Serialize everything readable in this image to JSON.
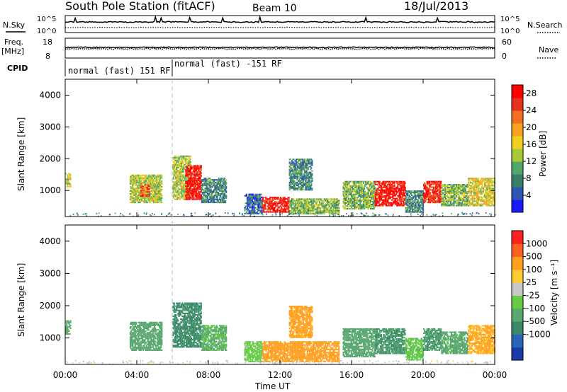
{
  "header": {
    "title": "South Pole Station (fitACF)",
    "beam": "Beam 10",
    "date": "18/Jul/2013"
  },
  "status_panels": {
    "nsky_label": "N.Sky",
    "nsearch_label": "N.Search",
    "noise_ticks_left": [
      "10^5",
      "10^0"
    ],
    "noise_ticks_right": [
      "10^5",
      "10^0"
    ],
    "freq_label": "Freq.",
    "freq_unit": "[MHz]",
    "freq_ticks": [
      "18",
      "8"
    ],
    "nave_label": "Nave",
    "nave_ticks": [
      "60",
      "0"
    ],
    "cpid_label": "CPID",
    "cpid_segments": [
      {
        "label": "normal (fast) 151 RF",
        "start_hour": 0,
        "end_hour": 6
      },
      {
        "label": "normal (fast) -151 RF",
        "start_hour": 6,
        "end_hour": 24
      }
    ]
  },
  "colors": {
    "power_scale": [
      "#1a1aff",
      "#2e58b0",
      "#3a7e6a",
      "#4fa86a",
      "#a8c83a",
      "#f0d020",
      "#f8a020",
      "#f07020",
      "#e83020",
      "#ff0000"
    ],
    "velocity_scale": [
      "#1a3aa8",
      "#2a66b8",
      "#3a8a6a",
      "#5aa870",
      "#66cc44",
      "#c8c8c8",
      "#ffcc33",
      "#ffa020",
      "#ff6020",
      "#ff2020"
    ],
    "noise_line": "#000000"
  },
  "chart_data": [
    {
      "type": "heatmap",
      "panel": "power",
      "ylabel": "Slant Range [km]",
      "y_ticks": [
        "1000",
        "2000",
        "3000",
        "4000"
      ],
      "ylim": [
        180,
        4500
      ],
      "xlim_hours": [
        0,
        24
      ],
      "colorbar": {
        "label": "Power [dB]",
        "ticks": [
          "4",
          "8",
          "12",
          "16",
          "20",
          "24",
          "28"
        ],
        "range": [
          0,
          30
        ]
      },
      "echo_regions": [
        {
          "t0": 0.0,
          "t1": 0.3,
          "r0": 1100,
          "r1": 1550,
          "power": 14
        },
        {
          "t0": 3.6,
          "t1": 5.4,
          "r0": 600,
          "r1": 1500,
          "power": 14
        },
        {
          "t0": 4.2,
          "t1": 4.7,
          "r0": 800,
          "r1": 1200,
          "power": 24
        },
        {
          "t0": 6.0,
          "t1": 7.0,
          "r0": 700,
          "r1": 2100,
          "power": 14
        },
        {
          "t0": 6.7,
          "t1": 7.6,
          "r0": 700,
          "r1": 1800,
          "power": 28
        },
        {
          "t0": 7.6,
          "t1": 9.0,
          "r0": 600,
          "r1": 1400,
          "power": 8
        },
        {
          "t0": 10.0,
          "t1": 11.0,
          "r0": 250,
          "r1": 900,
          "power": 6
        },
        {
          "t0": 11.0,
          "t1": 12.5,
          "r0": 300,
          "r1": 800,
          "power": 28
        },
        {
          "t0": 12.5,
          "t1": 15.3,
          "r0": 250,
          "r1": 750,
          "power": 12
        },
        {
          "t0": 12.5,
          "t1": 13.8,
          "r0": 1000,
          "r1": 2000,
          "power": 8
        },
        {
          "t0": 15.5,
          "t1": 17.3,
          "r0": 400,
          "r1": 1300,
          "power": 12
        },
        {
          "t0": 17.3,
          "t1": 19.0,
          "r0": 500,
          "r1": 1300,
          "power": 28
        },
        {
          "t0": 19.0,
          "t1": 20.0,
          "r0": 300,
          "r1": 1000,
          "power": 8
        },
        {
          "t0": 20.0,
          "t1": 21.0,
          "r0": 600,
          "r1": 1300,
          "power": 26
        },
        {
          "t0": 21.0,
          "t1": 22.5,
          "r0": 500,
          "r1": 1200,
          "power": 12
        },
        {
          "t0": 22.5,
          "t1": 24.0,
          "r0": 500,
          "r1": 1400,
          "power": 16
        }
      ]
    },
    {
      "type": "heatmap",
      "panel": "velocity",
      "ylabel": "Slant Range [km]",
      "y_ticks": [
        "1000",
        "2000",
        "3000",
        "4000"
      ],
      "ylim": [
        180,
        4500
      ],
      "xlim_hours": [
        0,
        24
      ],
      "x_ticks": [
        "00:00",
        "04:00",
        "08:00",
        "12:00",
        "16:00",
        "20:00",
        "00:00"
      ],
      "xlabel": "Time UT",
      "colorbar": {
        "label": "Velocity [m s⁻¹]",
        "ticks": [
          "1000",
          "500",
          "100",
          "25",
          "-25",
          "-100",
          "-500",
          "-1000"
        ],
        "range": [
          -1200,
          1200
        ]
      },
      "echo_regions": [
        {
          "t0": 0.0,
          "t1": 0.3,
          "r0": 1100,
          "r1": 1550,
          "velocity": -150
        },
        {
          "t0": 3.6,
          "t1": 5.4,
          "r0": 600,
          "r1": 1500,
          "velocity": -300
        },
        {
          "t0": 6.0,
          "t1": 7.6,
          "r0": 700,
          "r1": 2100,
          "velocity": -700
        },
        {
          "t0": 7.6,
          "t1": 9.0,
          "r0": 600,
          "r1": 1400,
          "velocity": -120
        },
        {
          "t0": 10.0,
          "t1": 11.0,
          "r0": 250,
          "r1": 900,
          "velocity": -60
        },
        {
          "t0": 11.0,
          "t1": 15.3,
          "r0": 250,
          "r1": 900,
          "velocity": 250
        },
        {
          "t0": 12.5,
          "t1": 13.8,
          "r0": 1000,
          "r1": 2000,
          "velocity": 150
        },
        {
          "t0": 15.5,
          "t1": 17.3,
          "r0": 400,
          "r1": 1300,
          "velocity": -200
        },
        {
          "t0": 17.3,
          "t1": 19.0,
          "r0": 500,
          "r1": 1300,
          "velocity": -500
        },
        {
          "t0": 19.0,
          "t1": 20.0,
          "r0": 300,
          "r1": 1000,
          "velocity": -80
        },
        {
          "t0": 20.0,
          "t1": 21.0,
          "r0": 600,
          "r1": 1300,
          "velocity": -450
        },
        {
          "t0": 21.0,
          "t1": 22.5,
          "r0": 500,
          "r1": 1200,
          "velocity": -150
        },
        {
          "t0": 22.5,
          "t1": 24.0,
          "r0": 500,
          "r1": 1400,
          "velocity": 120
        }
      ]
    }
  ]
}
